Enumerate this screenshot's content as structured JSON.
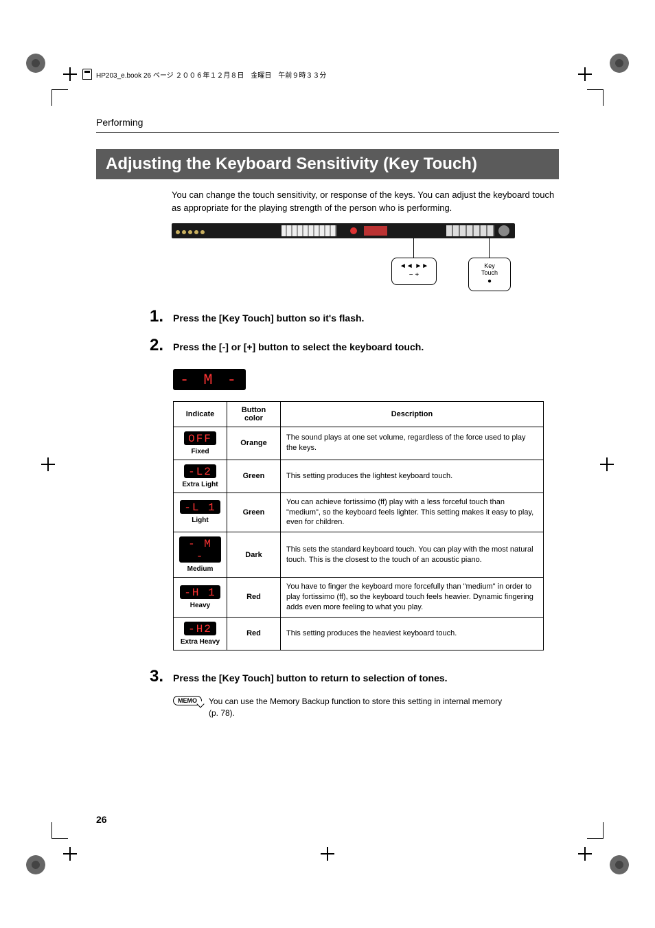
{
  "header_line": "HP203_e.book 26 ページ ２００６年１２月８日　金曜日　午前９時３３分",
  "section_name": "Performing",
  "title": "Adjusting the Keyboard Sensitivity (Key Touch)",
  "intro": "You can change the touch sensitivity, or response of the keys. You can adjust the keyboard touch as appropriate for the playing strength of the person who is performing.",
  "callout1_top": "◄◄   ►►",
  "callout1_bot": "−      +",
  "callout2_top": "Key Touch",
  "callout2_bot": "●",
  "steps": [
    {
      "n": "1.",
      "t": "Press the [Key Touch] button so it's flash."
    },
    {
      "n": "2.",
      "t": "Press the [-] or [+] button to select the keyboard touch."
    },
    {
      "n": "3.",
      "t": "Press the [Key Touch] button to return to selection of tones."
    }
  ],
  "lcd_example": "- M -",
  "table": {
    "headers": [
      "Indicate",
      "Button color",
      "Description"
    ],
    "rows": [
      {
        "lcd": "OFF",
        "label": "Fixed",
        "color": "Orange",
        "desc": "The sound plays at one set volume, regardless of the force used to play the keys."
      },
      {
        "lcd": "-L2",
        "label": "Extra Light",
        "color": "Green",
        "desc": "This setting produces the lightest keyboard touch."
      },
      {
        "lcd": "-L 1",
        "label": "Light",
        "color": "Green",
        "desc": "You can achieve fortissimo (ff) play with a less forceful touch than \"medium\", so the keyboard feels lighter. This setting makes it easy to play, even for children."
      },
      {
        "lcd": "- M -",
        "label": "Medium",
        "color": "Dark",
        "desc": "This sets the standard keyboard touch. You can play with the most natural touch. This is the closest to the touch of an acoustic piano."
      },
      {
        "lcd": "-H 1",
        "label": "Heavy",
        "color": "Red",
        "desc": "You have to finger the keyboard more forcefully than \"medium\" in order to play fortissimo (ff), so the keyboard touch feels heavier. Dynamic fingering adds even more feeling to what you play."
      },
      {
        "lcd": "-H2",
        "label": "Extra Heavy",
        "color": "Red",
        "desc": "This setting produces the heaviest keyboard touch."
      }
    ]
  },
  "memo_label": "MEMO",
  "memo_text": "You can use the Memory Backup function to store this setting in internal memory (p. 78).",
  "page_number": "26",
  "colors": {
    "title_bg": "#5b5b5b",
    "lcd_bg": "#000000",
    "lcd_fg": "#ff3333"
  }
}
